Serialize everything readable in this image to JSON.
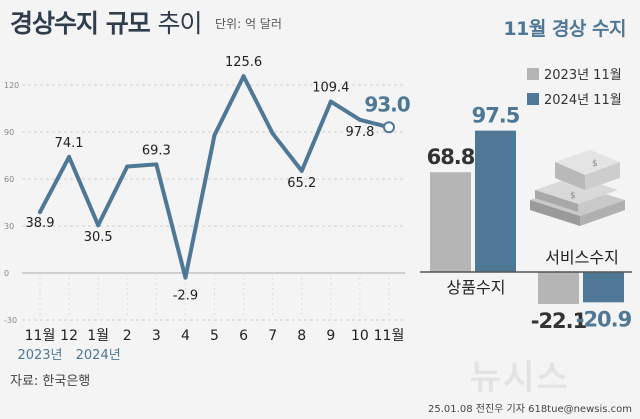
{
  "title_part1": "경상수지 규모",
  "title_part2": "추이",
  "unit": "단위: 억 달러",
  "right_title": "11월 경상 수지",
  "legend": [
    {
      "label": "2023년 11월",
      "color": "#b5b5b5"
    },
    {
      "label": "2024년 11월",
      "color": "#4e7896"
    }
  ],
  "source": "자료: 한국은행",
  "credit": "25.01.08 전진우 기자 618tue@newsis.com",
  "watermark": "뉴시스",
  "chart_data": [
    {
      "type": "line",
      "x": [
        "11월",
        "12",
        "1월",
        "2",
        "3",
        "4",
        "5",
        "6",
        "7",
        "8",
        "9",
        "10",
        "11월"
      ],
      "year_labels": [
        "2023년",
        "2024년"
      ],
      "values": [
        38.9,
        74.1,
        30.5,
        68.0,
        69.3,
        -2.9,
        88.0,
        125.6,
        89.0,
        65.2,
        109.4,
        97.8,
        93.0
      ],
      "value_labels": [
        "38.9",
        "74.1",
        "30.5",
        "",
        "69.3",
        "-2.9",
        "",
        "125.6",
        "",
        "65.2",
        "109.4",
        "97.8",
        "93.0"
      ],
      "y_ticks": [
        "120",
        "90",
        "60",
        "30",
        "0",
        "-30"
      ],
      "ylim": [
        -30,
        130
      ],
      "color": "#4e7896"
    },
    {
      "type": "bar",
      "categories": [
        "상품수지",
        "서비스수지"
      ],
      "series": [
        {
          "name": "2023년 11월",
          "values": [
            68.8,
            -22.1
          ],
          "labels": [
            "68.8",
            "-22.1"
          ],
          "color": "#b5b5b5"
        },
        {
          "name": "2024년 11월",
          "values": [
            97.5,
            -20.9
          ],
          "labels": [
            "97.5",
            "-20.9"
          ],
          "color": "#4e7896"
        }
      ]
    }
  ]
}
